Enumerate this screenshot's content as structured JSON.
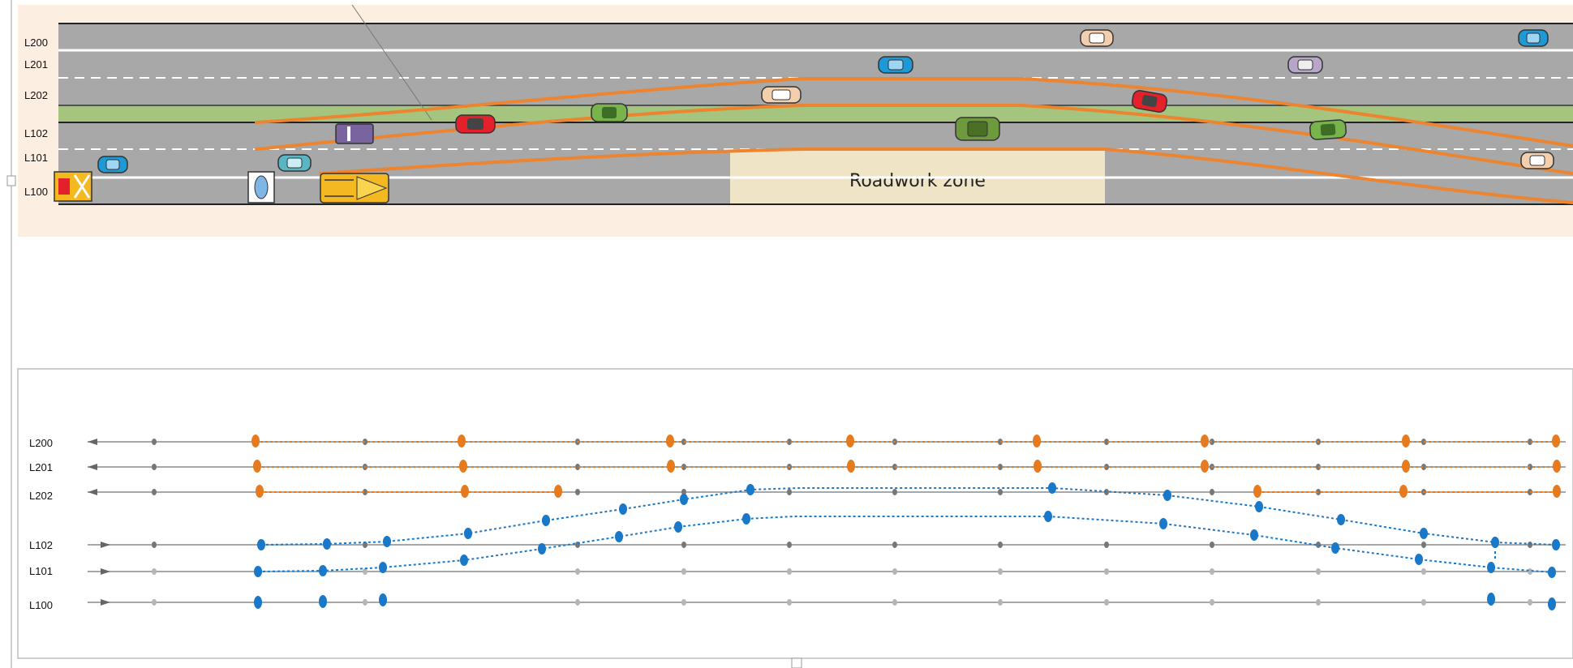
{
  "top_view": {
    "lanes": [
      {
        "id": "L200",
        "label": "L200"
      },
      {
        "id": "L201",
        "label": "L201"
      },
      {
        "id": "L202",
        "label": "L202"
      },
      {
        "id": "L102",
        "label": "L102"
      },
      {
        "id": "L101",
        "label": "L101"
      },
      {
        "id": "L100",
        "label": "L100"
      }
    ],
    "roadwork_label": "Roadwork zone",
    "colors": {
      "panel_bg": "#fdeee2",
      "road": "#a8a8a8",
      "median": "#a5c57e",
      "roadwork": "#efe4c6",
      "trajectory": "#ec8430",
      "lane_line": "#ffffff"
    },
    "vehicles": [
      {
        "lane": "L200",
        "color": "#f3cfae",
        "type": "car"
      },
      {
        "lane": "L200",
        "color": "#1d9ad6",
        "type": "car"
      },
      {
        "lane": "L201",
        "color": "#1d9ad6",
        "type": "car"
      },
      {
        "lane": "L201",
        "color": "#b7a6c8",
        "type": "car"
      },
      {
        "lane": "L202",
        "color": "#f3cfae",
        "type": "car"
      },
      {
        "lane": "L202",
        "color": "#e4202a",
        "type": "car"
      },
      {
        "lane": "L102",
        "color": "#e4202a",
        "type": "car"
      },
      {
        "lane": "L102",
        "color": "#78b34c",
        "type": "car"
      },
      {
        "lane": "L102",
        "color": "#7a64a0",
        "type": "truck"
      },
      {
        "lane": "L102",
        "color": "#6d9a3c",
        "type": "car"
      },
      {
        "lane": "L102",
        "color": "#78b34c",
        "type": "car"
      },
      {
        "lane": "L101",
        "color": "#1d9ad6",
        "type": "car"
      },
      {
        "lane": "L101",
        "color": "#5bb6c4",
        "type": "car"
      },
      {
        "lane": "L101",
        "color": "#f3cfae",
        "type": "car"
      },
      {
        "lane": "L100",
        "color": "#f4b820",
        "type": "roadwork-vehicle"
      },
      {
        "lane": "L100",
        "color": "#ffffff",
        "type": "barrier"
      },
      {
        "lane": "L100",
        "color": "#f4b820",
        "type": "excavator"
      }
    ]
  },
  "graph_view": {
    "lanes": [
      {
        "id": "L200",
        "label": "L200",
        "direction": "left"
      },
      {
        "id": "L201",
        "label": "L201",
        "direction": "left"
      },
      {
        "id": "L202",
        "label": "L202",
        "direction": "left"
      },
      {
        "id": "L102",
        "label": "L102",
        "direction": "right"
      },
      {
        "id": "L101",
        "label": "L101",
        "direction": "right"
      },
      {
        "id": "L100",
        "label": "L100",
        "direction": "right"
      }
    ],
    "colors": {
      "orange_node": "#e57a1e",
      "blue_node": "#1a78c9",
      "grey_node": "#777777",
      "light_node": "#b5b5b5",
      "axis": "#8a8a8a"
    }
  }
}
